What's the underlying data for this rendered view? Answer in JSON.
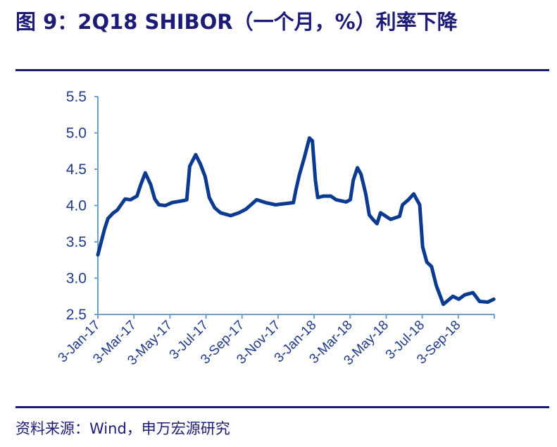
{
  "title": "图 9：2Q18 SHIBOR（一个月，%）利率下降",
  "footer": "资料来源：Wind，申万宏源研究",
  "colors": {
    "line": "#0b3a91",
    "axis": "#6fa0c8",
    "tick_text": "#1f3a8a",
    "title": "#1c1c78",
    "rule": "#1a1a6e"
  },
  "chart_data": {
    "type": "line",
    "title": "图 9：2Q18 SHIBOR（一个月，%）利率下降",
    "xlabel": "",
    "ylabel": "",
    "ylim": [
      2.5,
      5.5
    ],
    "xlim": [
      "2017-01-03",
      "2018-11-03"
    ],
    "yticks": [
      "5.5",
      "5.0",
      "4.5",
      "4.0",
      "3.5",
      "3.0",
      "2.5"
    ],
    "xticks": [
      "3-Jan-17",
      "3-Mar-17",
      "3-May-17",
      "3-Jul-17",
      "3-Sep-17",
      "3-Nov-17",
      "3-Jan-18",
      "3-Mar-18",
      "3-May-18",
      "3-Jul-18",
      "3-Sep-18"
    ],
    "grid": false,
    "legend": "none",
    "series": [
      {
        "points": [
          [
            "2017-01-03",
            3.32
          ],
          [
            "2017-01-08",
            3.48
          ],
          [
            "2017-01-14",
            3.67
          ],
          [
            "2017-01-20",
            3.82
          ],
          [
            "2017-01-28",
            3.89
          ],
          [
            "2017-02-05",
            3.94
          ],
          [
            "2017-02-11",
            4.01
          ],
          [
            "2017-02-18",
            4.09
          ],
          [
            "2017-02-27",
            4.08
          ],
          [
            "2017-03-10",
            4.13
          ],
          [
            "2017-03-16",
            4.28
          ],
          [
            "2017-03-24",
            4.45
          ],
          [
            "2017-04-02",
            4.29
          ],
          [
            "2017-04-09",
            4.09
          ],
          [
            "2017-04-16",
            4.01
          ],
          [
            "2017-04-27",
            4.0
          ],
          [
            "2017-05-08",
            4.04
          ],
          [
            "2017-05-29",
            4.07
          ],
          [
            "2017-06-02",
            4.08
          ],
          [
            "2017-06-07",
            4.54
          ],
          [
            "2017-06-17",
            4.7
          ],
          [
            "2017-06-25",
            4.57
          ],
          [
            "2017-07-03",
            4.4
          ],
          [
            "2017-07-10",
            4.11
          ],
          [
            "2017-07-19",
            3.97
          ],
          [
            "2017-07-29",
            3.9
          ],
          [
            "2017-08-15",
            3.86
          ],
          [
            "2017-08-29",
            3.9
          ],
          [
            "2017-09-10",
            3.95
          ],
          [
            "2017-09-28",
            4.08
          ],
          [
            "2017-10-13",
            4.04
          ],
          [
            "2017-10-30",
            4.01
          ],
          [
            "2017-11-09",
            4.02
          ],
          [
            "2017-11-29",
            4.04
          ],
          [
            "2017-12-03",
            4.21
          ],
          [
            "2017-12-09",
            4.42
          ],
          [
            "2017-12-17",
            4.65
          ],
          [
            "2017-12-26",
            4.93
          ],
          [
            "2017-12-31",
            4.89
          ],
          [
            "2018-01-05",
            4.35
          ],
          [
            "2018-01-09",
            4.11
          ],
          [
            "2018-01-19",
            4.13
          ],
          [
            "2018-01-31",
            4.13
          ],
          [
            "2018-02-09",
            4.08
          ],
          [
            "2018-02-26",
            4.05
          ],
          [
            "2018-03-05",
            4.08
          ],
          [
            "2018-03-10",
            4.35
          ],
          [
            "2018-03-17",
            4.52
          ],
          [
            "2018-03-23",
            4.43
          ],
          [
            "2018-03-31",
            4.16
          ],
          [
            "2018-04-06",
            3.87
          ],
          [
            "2018-04-12",
            3.81
          ],
          [
            "2018-04-19",
            3.75
          ],
          [
            "2018-04-25",
            3.9
          ],
          [
            "2018-05-12",
            3.81
          ],
          [
            "2018-05-27",
            3.85
          ],
          [
            "2018-06-01",
            4.01
          ],
          [
            "2018-06-11",
            4.08
          ],
          [
            "2018-06-20",
            4.16
          ],
          [
            "2018-06-30",
            4.01
          ],
          [
            "2018-07-05",
            3.43
          ],
          [
            "2018-07-12",
            3.22
          ],
          [
            "2018-07-20",
            3.16
          ],
          [
            "2018-07-28",
            2.9
          ],
          [
            "2018-08-09",
            2.64
          ],
          [
            "2018-08-25",
            2.75
          ],
          [
            "2018-09-04",
            2.71
          ],
          [
            "2018-09-14",
            2.77
          ],
          [
            "2018-09-28",
            2.8
          ],
          [
            "2018-10-09",
            2.68
          ],
          [
            "2018-10-23",
            2.67
          ],
          [
            "2018-11-02",
            2.71
          ]
        ]
      }
    ]
  }
}
